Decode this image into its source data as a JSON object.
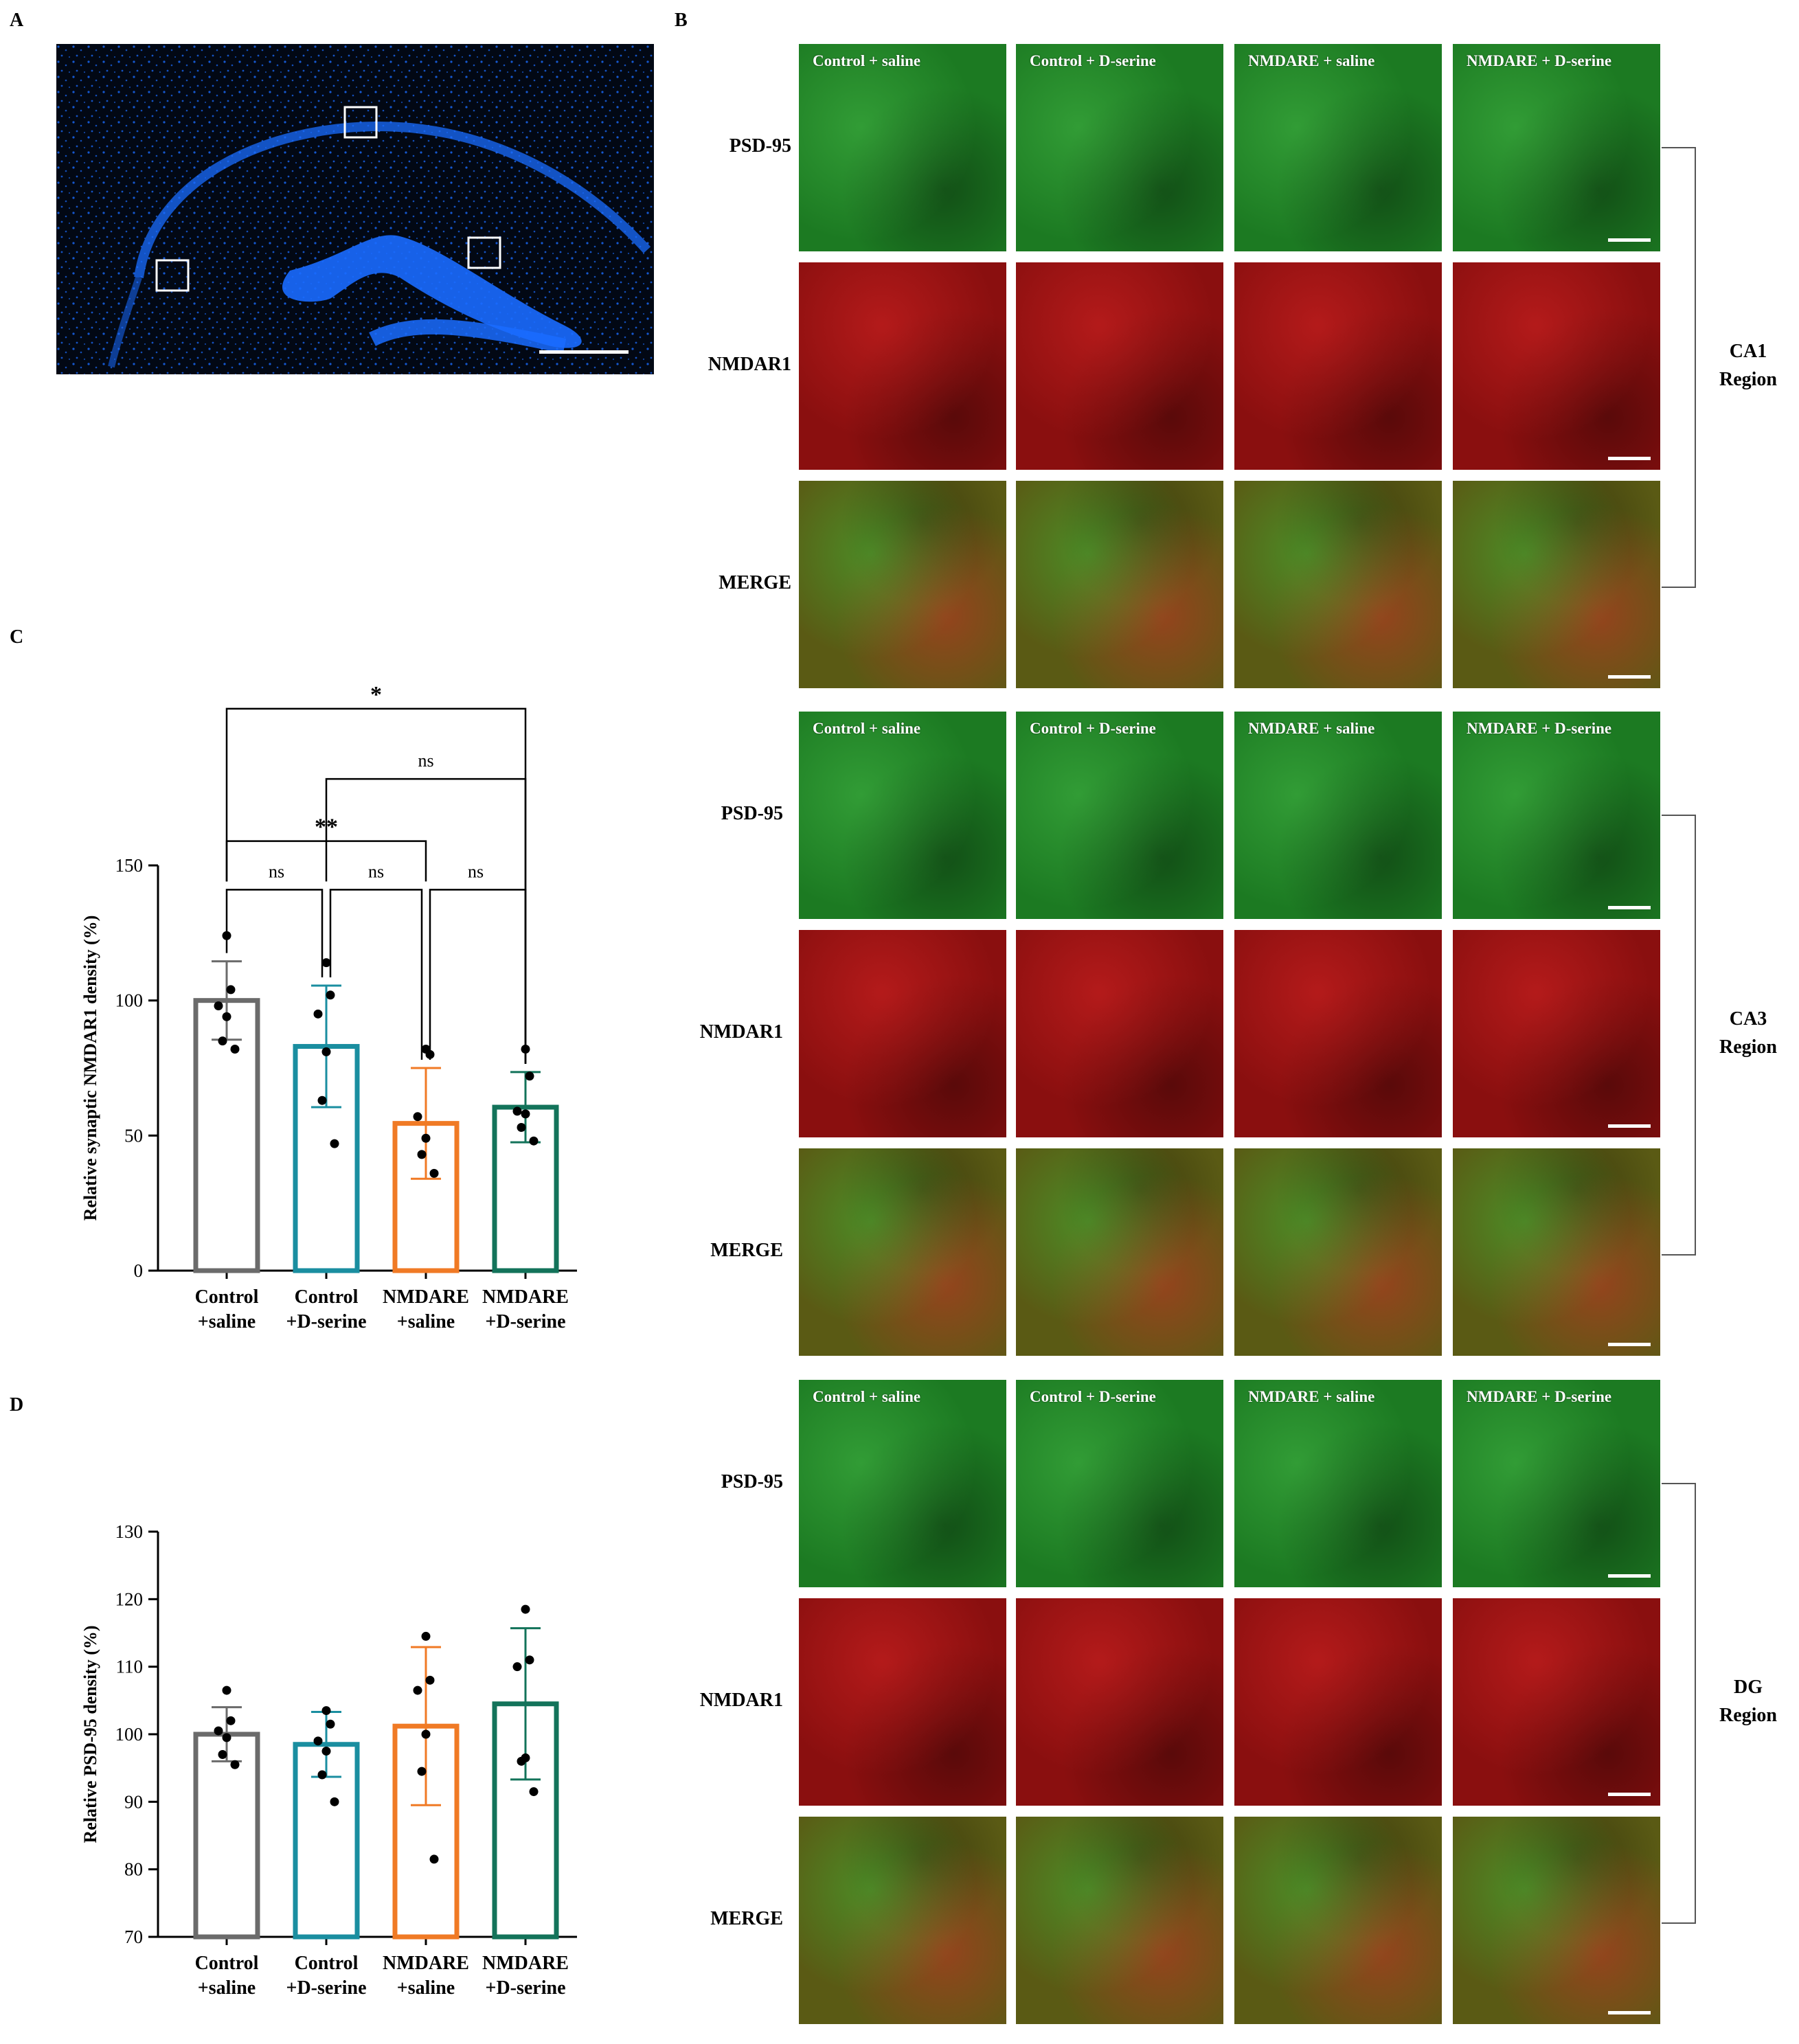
{
  "panels": {
    "a": "A",
    "b": "B",
    "c": "C",
    "d": "D"
  },
  "conditions": [
    "Control + saline",
    "Control + D-serine",
    "NMDARE + saline",
    "NMDARE + D-serine"
  ],
  "row_labels": {
    "psd95": "PSD-95",
    "nmdar1": "NMDAR1",
    "merge": "MERGE"
  },
  "regions": [
    {
      "line1": "CA1",
      "line2": "Region"
    },
    {
      "line1": "CA3",
      "line2": "Region"
    },
    {
      "line1": "DG",
      "line2": "Region"
    }
  ],
  "colors": {
    "control_saline": "#6b6b6b",
    "control_dserine": "#1a8ea0",
    "nmdare_saline": "#f07a25",
    "nmdare_dserine": "#13735a",
    "dapi": "#1a6cff"
  },
  "chart_data": [
    {
      "type": "bar",
      "panel": "C",
      "categories": [
        [
          "Control",
          "+saline"
        ],
        [
          "Control",
          "+D-serine"
        ],
        [
          "NMDARE",
          "+saline"
        ],
        [
          "NMDARE",
          "+D-serine"
        ]
      ],
      "values": [
        100,
        83,
        54.5,
        60.5
      ],
      "sd": [
        14.5,
        22.5,
        20.5,
        13
      ],
      "points": [
        [
          124,
          104,
          98,
          94,
          85,
          82
        ],
        [
          114,
          102,
          95,
          81,
          63,
          47
        ],
        [
          82,
          80,
          57,
          49,
          43,
          36
        ],
        [
          82,
          72,
          59,
          58,
          53,
          48
        ]
      ],
      "ylabel": "Relative synaptic NMDAR1 density  (%)",
      "ylim": [
        0,
        150
      ],
      "yticks": [
        0,
        50,
        100,
        150
      ],
      "comparisons": [
        {
          "a": 0,
          "b": 1,
          "label": "ns",
          "level": 1
        },
        {
          "a": 1,
          "b": 2,
          "label": "ns",
          "level": 1
        },
        {
          "a": 2,
          "b": 3,
          "label": "ns",
          "level": 1
        },
        {
          "a": 0,
          "b": 2,
          "label": "**",
          "level": 2
        },
        {
          "a": 1,
          "b": 3,
          "label": "ns",
          "level": 3
        },
        {
          "a": 0,
          "b": 3,
          "label": "*",
          "level": 4
        }
      ]
    },
    {
      "type": "bar",
      "panel": "D",
      "categories": [
        [
          "Control",
          "+saline"
        ],
        [
          "Control",
          "+D-serine"
        ],
        [
          "NMDARE",
          "+saline"
        ],
        [
          "NMDARE",
          "+D-serine"
        ]
      ],
      "values": [
        100,
        98.5,
        101.2,
        104.5
      ],
      "sd": [
        4,
        4.8,
        11.7,
        11.2
      ],
      "points": [
        [
          106.5,
          102,
          100.5,
          99.5,
          97,
          95.5
        ],
        [
          103.5,
          101.5,
          99,
          97.5,
          94,
          90
        ],
        [
          114.5,
          108,
          106.5,
          100,
          94.5,
          81.5
        ],
        [
          118.5,
          111,
          110,
          96.5,
          96,
          91.5
        ]
      ],
      "ylabel": "Relative PSD-95 density  (%)",
      "ylim": [
        70,
        130
      ],
      "yticks": [
        70,
        80,
        90,
        100,
        110,
        120,
        130
      ]
    }
  ]
}
